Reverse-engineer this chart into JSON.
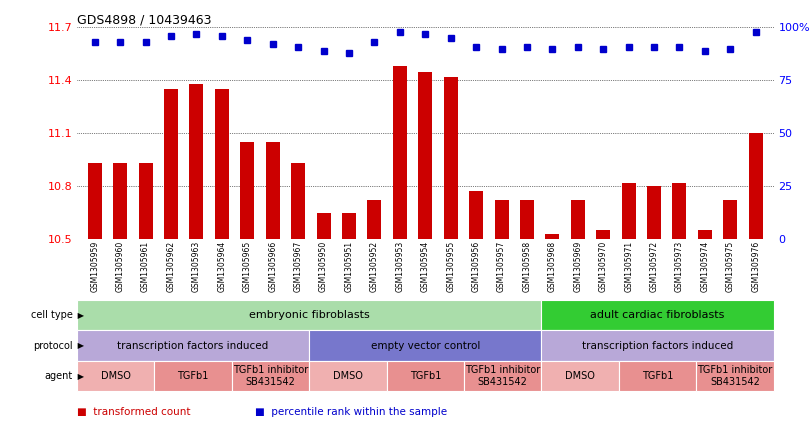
{
  "title": "GDS4898 / 10439463",
  "samples": [
    "GSM1305959",
    "GSM1305960",
    "GSM1305961",
    "GSM1305962",
    "GSM1305963",
    "GSM1305964",
    "GSM1305965",
    "GSM1305966",
    "GSM1305967",
    "GSM1305950",
    "GSM1305951",
    "GSM1305952",
    "GSM1305953",
    "GSM1305954",
    "GSM1305955",
    "GSM1305956",
    "GSM1305957",
    "GSM1305958",
    "GSM1305968",
    "GSM1305969",
    "GSM1305970",
    "GSM1305971",
    "GSM1305972",
    "GSM1305973",
    "GSM1305974",
    "GSM1305975",
    "GSM1305976"
  ],
  "bar_values": [
    10.93,
    10.93,
    10.93,
    11.35,
    11.38,
    11.35,
    11.05,
    11.05,
    10.93,
    10.65,
    10.65,
    10.72,
    11.48,
    11.45,
    11.42,
    10.77,
    10.72,
    10.72,
    10.53,
    10.72,
    10.55,
    10.82,
    10.8,
    10.82,
    10.55,
    10.72,
    11.1
  ],
  "percentile_values": [
    93,
    93,
    93,
    96,
    97,
    96,
    94,
    92,
    91,
    89,
    88,
    93,
    98,
    97,
    95,
    91,
    90,
    91,
    90,
    91,
    90,
    91,
    91,
    91,
    89,
    90,
    98
  ],
  "ylim_left": [
    10.5,
    11.7
  ],
  "ylim_right": [
    0,
    100
  ],
  "yticks_left": [
    10.5,
    10.8,
    11.1,
    11.4,
    11.7
  ],
  "yticks_right": [
    0,
    25,
    50,
    75,
    100
  ],
  "ytick_labels_right": [
    "0",
    "25",
    "50",
    "75",
    "100%"
  ],
  "bar_color": "#cc0000",
  "dot_color": "#0000cc",
  "bg_color": "#ffffff",
  "label_bg_color": "#cccccc",
  "cell_type_groups": [
    {
      "label": "embryonic fibroblasts",
      "start": 0,
      "end": 18,
      "color": "#aaddaa"
    },
    {
      "label": "adult cardiac fibroblasts",
      "start": 18,
      "end": 27,
      "color": "#33cc33"
    }
  ],
  "protocol_groups": [
    {
      "label": "transcription factors induced",
      "start": 0,
      "end": 9,
      "color": "#b8a8d8"
    },
    {
      "label": "empty vector control",
      "start": 9,
      "end": 18,
      "color": "#7777cc"
    },
    {
      "label": "transcription factors induced",
      "start": 18,
      "end": 27,
      "color": "#b8a8d8"
    }
  ],
  "agent_groups": [
    {
      "label": "DMSO",
      "start": 0,
      "end": 3,
      "color": "#f0b0b0"
    },
    {
      "label": "TGFb1",
      "start": 3,
      "end": 6,
      "color": "#e89090"
    },
    {
      "label": "TGFb1 inhibitor\nSB431542",
      "start": 6,
      "end": 9,
      "color": "#e89090"
    },
    {
      "label": "DMSO",
      "start": 9,
      "end": 12,
      "color": "#f0b0b0"
    },
    {
      "label": "TGFb1",
      "start": 12,
      "end": 15,
      "color": "#e89090"
    },
    {
      "label": "TGFb1 inhibitor\nSB431542",
      "start": 15,
      "end": 18,
      "color": "#e89090"
    },
    {
      "label": "DMSO",
      "start": 18,
      "end": 21,
      "color": "#f0b0b0"
    },
    {
      "label": "TGFb1",
      "start": 21,
      "end": 24,
      "color": "#e89090"
    },
    {
      "label": "TGFb1 inhibitor\nSB431542",
      "start": 24,
      "end": 27,
      "color": "#e89090"
    }
  ],
  "row_labels": [
    "agent",
    "protocol",
    "cell type"
  ],
  "legend_items": [
    {
      "color": "#cc0000",
      "label": "transformed count"
    },
    {
      "color": "#0000cc",
      "label": "percentile rank within the sample"
    }
  ]
}
